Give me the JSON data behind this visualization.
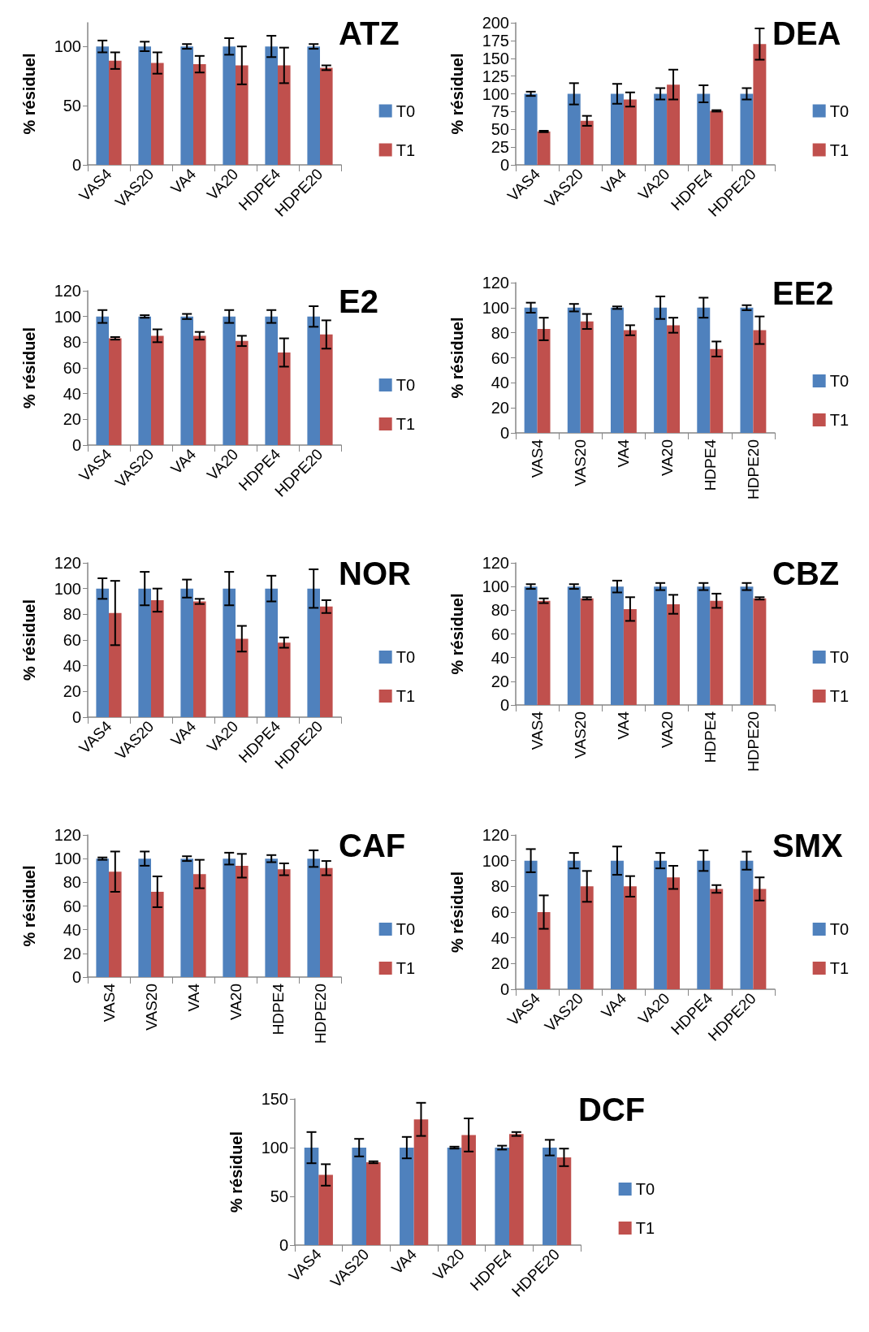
{
  "chart_data": [
    {
      "type": "bar",
      "title": "ATZ",
      "ylabel": "% résiduel",
      "categories": [
        "VAS4",
        "VAS20",
        "VA4",
        "VA20",
        "HDPE4",
        "HDPE20"
      ],
      "ylim": [
        0,
        120
      ],
      "yticks": [
        0,
        50,
        100
      ],
      "grid": false,
      "legend": "right",
      "series": [
        {
          "name": "T0",
          "color": "#4f81bd",
          "values": [
            100,
            100,
            100,
            100,
            100,
            100
          ],
          "errors": [
            5,
            4,
            2,
            7,
            9,
            2
          ]
        },
        {
          "name": "T1",
          "color": "#c0504d",
          "values": [
            88,
            86,
            85,
            84,
            84,
            82
          ],
          "errors": [
            7,
            9,
            7,
            16,
            15,
            2
          ]
        }
      ]
    },
    {
      "type": "bar",
      "title": "DEA",
      "ylabel": "% résiduel",
      "categories": [
        "VAS4",
        "VAS20",
        "VA4",
        "VA20",
        "HDPE4",
        "HDPE20"
      ],
      "ylim": [
        0,
        200
      ],
      "yticks": [
        0,
        25,
        50,
        75,
        100,
        125,
        150,
        175,
        200
      ],
      "grid": false,
      "legend": "right",
      "series": [
        {
          "name": "T0",
          "color": "#4f81bd",
          "values": [
            100,
            100,
            100,
            100,
            100,
            100
          ],
          "errors": [
            3,
            15,
            14,
            8,
            12,
            8
          ]
        },
        {
          "name": "T1",
          "color": "#c0504d",
          "values": [
            47,
            62,
            92,
            113,
            76,
            170
          ],
          "errors": [
            1,
            7,
            10,
            21,
            1,
            22
          ]
        }
      ]
    },
    {
      "type": "bar",
      "title": "E2",
      "ylabel": "% résiduel",
      "categories": [
        "VAS4",
        "VAS20",
        "VA4",
        "VA20",
        "HDPE4",
        "HDPE20"
      ],
      "ylim": [
        0,
        120
      ],
      "yticks": [
        0,
        20,
        40,
        60,
        80,
        100,
        120
      ],
      "grid": false,
      "legend": "right",
      "series": [
        {
          "name": "T0",
          "color": "#4f81bd",
          "values": [
            100,
            100,
            100,
            100,
            100,
            100
          ],
          "errors": [
            5,
            1,
            2,
            5,
            5,
            8
          ]
        },
        {
          "name": "T1",
          "color": "#c0504d",
          "values": [
            83,
            85,
            85,
            81,
            72,
            86
          ],
          "errors": [
            1,
            5,
            3,
            4,
            11,
            11
          ]
        }
      ]
    },
    {
      "type": "bar",
      "title": "EE2",
      "ylabel": "% résiduel",
      "categories": [
        "VAS4",
        "VAS20",
        "VA4",
        "VA20",
        "HDPE4",
        "HDPE20"
      ],
      "ylim": [
        0,
        120
      ],
      "yticks": [
        0,
        20,
        40,
        60,
        80,
        100,
        120
      ],
      "grid": false,
      "legend": "right",
      "series": [
        {
          "name": "T0",
          "color": "#4f81bd",
          "values": [
            100,
            100,
            100,
            100,
            100,
            100
          ],
          "errors": [
            4,
            3,
            1,
            9,
            8,
            2
          ]
        },
        {
          "name": "T1",
          "color": "#c0504d",
          "values": [
            83,
            89,
            82,
            86,
            67,
            82
          ],
          "errors": [
            9,
            6,
            4,
            6,
            6,
            11
          ]
        }
      ]
    },
    {
      "type": "bar",
      "title": "NOR",
      "ylabel": "% résiduel",
      "categories": [
        "VAS4",
        "VAS20",
        "VA4",
        "VA20",
        "HDPE4",
        "HDPE20"
      ],
      "ylim": [
        0,
        120
      ],
      "yticks": [
        0,
        20,
        40,
        60,
        80,
        100,
        120
      ],
      "grid": false,
      "legend": "right",
      "series": [
        {
          "name": "T0",
          "color": "#4f81bd",
          "values": [
            100,
            100,
            100,
            100,
            100,
            100
          ],
          "errors": [
            8,
            13,
            7,
            13,
            10,
            15
          ]
        },
        {
          "name": "T1",
          "color": "#c0504d",
          "values": [
            81,
            91,
            90,
            61,
            58,
            86
          ],
          "errors": [
            25,
            9,
            2,
            10,
            4,
            5
          ]
        }
      ]
    },
    {
      "type": "bar",
      "title": "CBZ",
      "ylabel": "% résiduel",
      "categories": [
        "VAS4",
        "VAS20",
        "VA4",
        "VA20",
        "HDPE4",
        "HDPE20"
      ],
      "ylim": [
        0,
        120
      ],
      "yticks": [
        0,
        20,
        40,
        60,
        80,
        100,
        120
      ],
      "grid": false,
      "legend": "right",
      "series": [
        {
          "name": "T0",
          "color": "#4f81bd",
          "values": [
            100,
            100,
            100,
            100,
            100,
            100
          ],
          "errors": [
            2,
            2,
            5,
            3,
            3,
            3
          ]
        },
        {
          "name": "T1",
          "color": "#c0504d",
          "values": [
            88,
            90,
            81,
            85,
            88,
            90
          ],
          "errors": [
            2,
            1,
            10,
            8,
            6,
            1
          ]
        }
      ]
    },
    {
      "type": "bar",
      "title": "CAF",
      "ylabel": "% résiduel",
      "categories": [
        "VAS4",
        "VAS20",
        "VA4",
        "VA20",
        "HDPE4",
        "HDPE20"
      ],
      "ylim": [
        0,
        120
      ],
      "yticks": [
        0,
        20,
        40,
        60,
        80,
        100,
        120
      ],
      "grid": false,
      "legend": "right",
      "series": [
        {
          "name": "T0",
          "color": "#4f81bd",
          "values": [
            100,
            100,
            100,
            100,
            100,
            100
          ],
          "errors": [
            1,
            6,
            2,
            5,
            3,
            7
          ]
        },
        {
          "name": "T1",
          "color": "#c0504d",
          "values": [
            89,
            72,
            87,
            94,
            91,
            92
          ],
          "errors": [
            17,
            13,
            12,
            10,
            5,
            6
          ]
        }
      ]
    },
    {
      "type": "bar",
      "title": "SMX",
      "ylabel": "% résiduel",
      "categories": [
        "VAS4",
        "VAS20",
        "VA4",
        "VA20",
        "HDPE4",
        "HDPE20"
      ],
      "ylim": [
        0,
        120
      ],
      "yticks": [
        0,
        20,
        40,
        60,
        80,
        100,
        120
      ],
      "grid": false,
      "legend": "right",
      "series": [
        {
          "name": "T0",
          "color": "#4f81bd",
          "values": [
            100,
            100,
            100,
            100,
            100,
            100
          ],
          "errors": [
            9,
            6,
            11,
            6,
            8,
            7
          ]
        },
        {
          "name": "T1",
          "color": "#c0504d",
          "values": [
            60,
            80,
            80,
            87,
            78,
            78
          ],
          "errors": [
            13,
            12,
            8,
            9,
            3,
            9
          ]
        }
      ]
    },
    {
      "type": "bar",
      "title": "DCF",
      "ylabel": "% résiduel",
      "categories": [
        "VAS4",
        "VAS20",
        "VA4",
        "VA20",
        "HDPE4",
        "HDPE20"
      ],
      "ylim": [
        0,
        150
      ],
      "yticks": [
        0,
        50,
        100,
        150
      ],
      "grid": false,
      "legend": "right",
      "series": [
        {
          "name": "T0",
          "color": "#4f81bd",
          "values": [
            100,
            100,
            100,
            100,
            100,
            100
          ],
          "errors": [
            16,
            9,
            11,
            1,
            2,
            8
          ]
        },
        {
          "name": "T1",
          "color": "#c0504d",
          "values": [
            72,
            85,
            129,
            113,
            114,
            90
          ],
          "errors": [
            11,
            1,
            17,
            17,
            2,
            9
          ]
        }
      ]
    }
  ]
}
